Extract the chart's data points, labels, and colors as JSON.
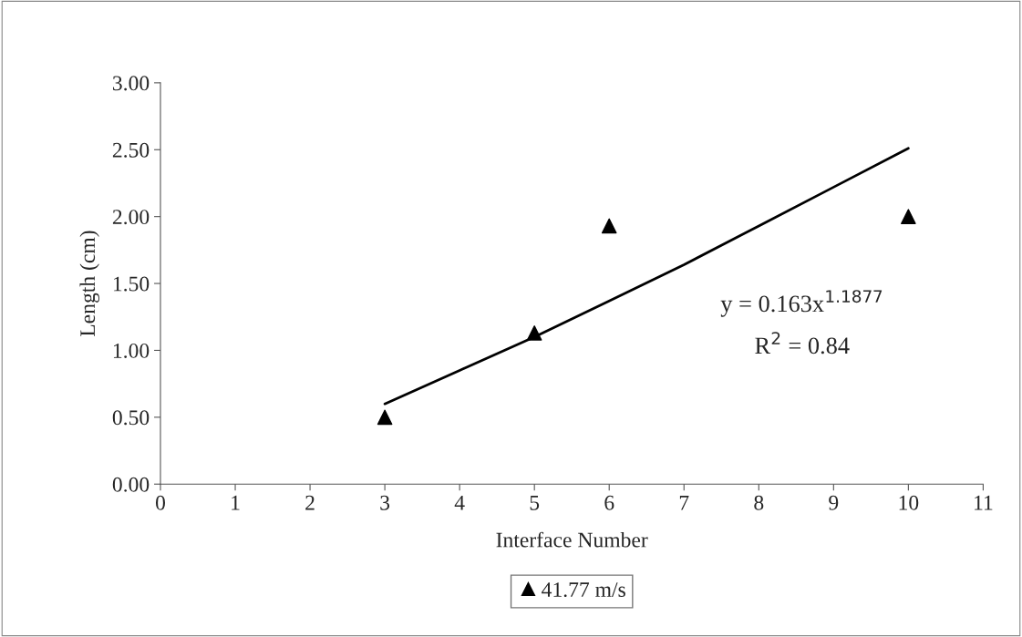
{
  "chart_data": {
    "type": "scatter",
    "xlabel": "Interface Number",
    "ylabel": "Length (cm)",
    "xlim": [
      0,
      11
    ],
    "xticks": [
      0,
      1,
      2,
      3,
      4,
      5,
      6,
      7,
      8,
      9,
      10,
      11
    ],
    "ylim": [
      0,
      3
    ],
    "yticks": [
      {
        "value": 0,
        "label": "0.00"
      },
      {
        "value": 0.5,
        "label": "0.50"
      },
      {
        "value": 1,
        "label": "1.00"
      },
      {
        "value": 1.5,
        "label": "1.50"
      },
      {
        "value": 2,
        "label": "2.00"
      },
      {
        "value": 2.5,
        "label": "2.50"
      },
      {
        "value": 3,
        "label": "3.00"
      }
    ],
    "grid": false,
    "legend": "bottom",
    "series": [
      {
        "name": "41.77 m/s",
        "color": "#000000",
        "marker": "triangle",
        "x": [
          3,
          5,
          6,
          10
        ],
        "values": [
          0.5,
          1.13,
          1.93,
          2.0
        ]
      },
      {
        "type": "line",
        "color": "#000000",
        "marker": "none",
        "line_style": "solid",
        "x": [
          3,
          4,
          5,
          6,
          7,
          8,
          9,
          10
        ],
        "values": [
          0.6,
          0.85,
          1.1,
          1.37,
          1.64,
          1.93,
          2.22,
          2.51
        ]
      }
    ],
    "annotations": [
      "y = 0.163x$^{1.1877}$",
      "R$^{2}$ = 0.84"
    ]
  }
}
